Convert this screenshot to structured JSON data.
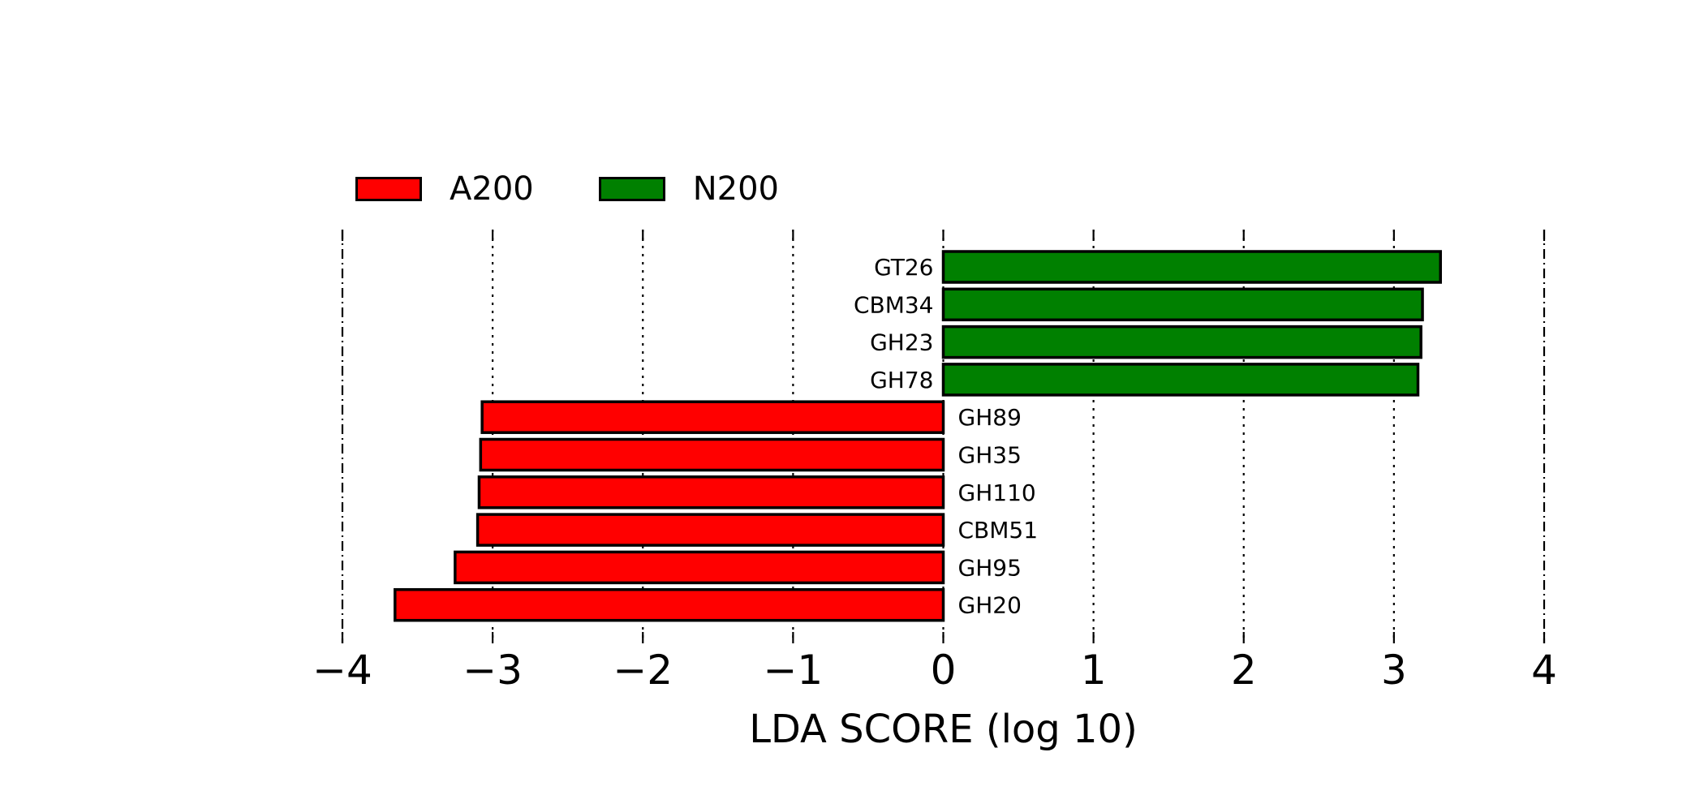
{
  "chart_data": {
    "type": "bar",
    "orientation": "horizontal",
    "xlabel": "LDA SCORE (log 10)",
    "xlim": [
      -4,
      4
    ],
    "xticks": [
      "−4",
      "−3",
      "−2",
      "−1",
      "0",
      "1",
      "2",
      "3",
      "4"
    ],
    "grid": true,
    "legend_position": "top-left",
    "series": [
      {
        "name": "A200",
        "color": "#ff0000"
      },
      {
        "name": "N200",
        "color": "#008000"
      }
    ],
    "bars": [
      {
        "label": "GT26",
        "value": 3.31,
        "group": "N200"
      },
      {
        "label": "CBM34",
        "value": 3.19,
        "group": "N200"
      },
      {
        "label": "GH23",
        "value": 3.18,
        "group": "N200"
      },
      {
        "label": "GH78",
        "value": 3.16,
        "group": "N200"
      },
      {
        "label": "GH89",
        "value": -3.07,
        "group": "A200"
      },
      {
        "label": "GH35",
        "value": -3.08,
        "group": "A200"
      },
      {
        "label": "GH110",
        "value": -3.09,
        "group": "A200"
      },
      {
        "label": "CBM51",
        "value": -3.1,
        "group": "A200"
      },
      {
        "label": "GH95",
        "value": -3.25,
        "group": "A200"
      },
      {
        "label": "GH20",
        "value": -3.65,
        "group": "A200"
      }
    ]
  }
}
